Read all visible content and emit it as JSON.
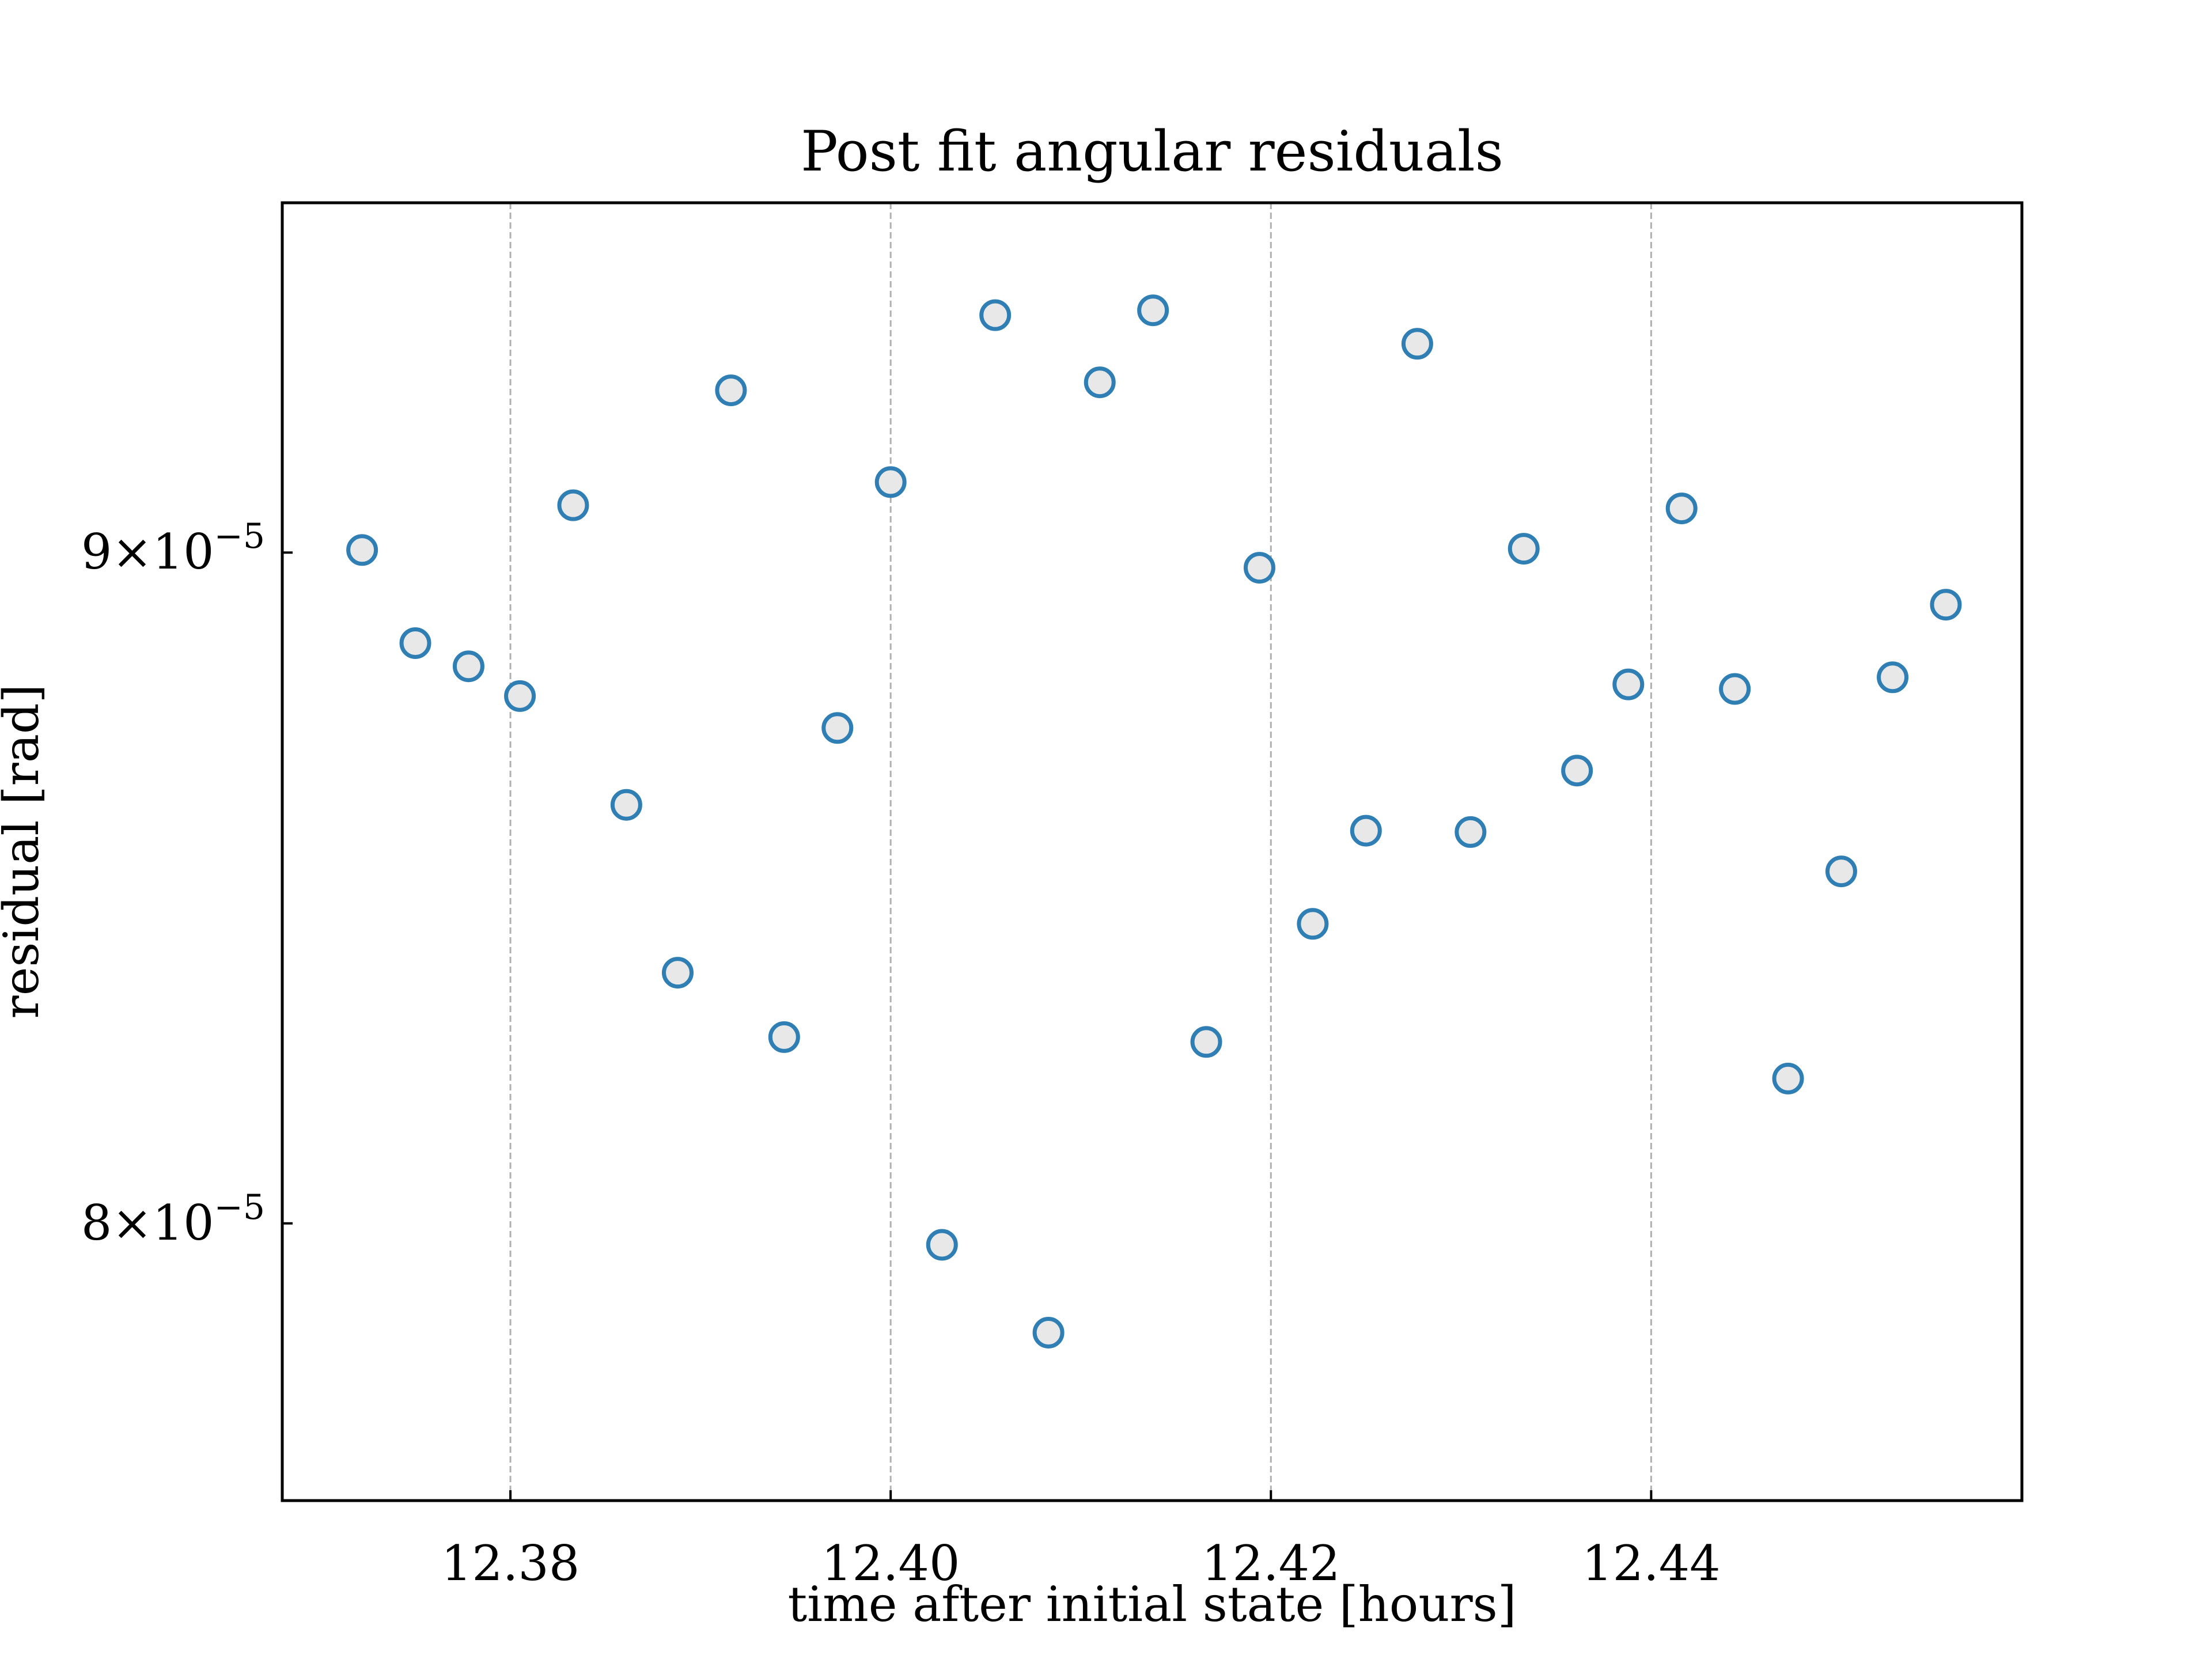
{
  "chart_data": {
    "type": "scatter",
    "title": "Post fit angular residuals",
    "xlabel": "time after initial state [hours]",
    "ylabel": "residual [rad]",
    "xlim": [
      12.368,
      12.4595
    ],
    "ylim": [
      7.62e-05,
      9.57e-05
    ],
    "y_scale": "log",
    "grid": "x-only, dashed",
    "x_ticks": [
      {
        "value": 12.38,
        "label": "12.38"
      },
      {
        "value": 12.4,
        "label": "12.40"
      },
      {
        "value": 12.42,
        "label": "12.42"
      },
      {
        "value": 12.44,
        "label": "12.44"
      }
    ],
    "y_ticks": [
      {
        "value": 9e-05,
        "mantissa": "9",
        "times": "×10",
        "exponent": "−5"
      },
      {
        "value": 8e-05,
        "mantissa": "8",
        "times": "×10",
        "exponent": "−5"
      }
    ],
    "marker": {
      "shape": "open circle",
      "edge_color": "#2f7fb5",
      "face_color": "#e8e8e8"
    },
    "x": [
      12.3722,
      12.375,
      12.3778,
      12.3805,
      12.3833,
      12.3861,
      12.3888,
      12.3916,
      12.3944,
      12.3972,
      12.4,
      12.4027,
      12.4055,
      12.4083,
      12.411,
      12.4138,
      12.4166,
      12.4194,
      12.4222,
      12.425,
      12.4277,
      12.4305,
      12.4333,
      12.4361,
      12.4388,
      12.4416,
      12.4444,
      12.4472,
      12.45,
      12.4527,
      12.4555
    ],
    "y": [
      9.004e-05,
      8.858e-05,
      8.822e-05,
      8.776e-05,
      9.075e-05,
      8.61e-05,
      8.36e-05,
      9.26e-05,
      8.266e-05,
      8.727e-05,
      9.112e-05,
      7.97e-05,
      9.383e-05,
      7.848e-05,
      9.273e-05,
      9.391e-05,
      8.259e-05,
      8.976e-05,
      8.432e-05,
      8.571e-05,
      9.336e-05,
      8.569e-05,
      9.006e-05,
      8.662e-05,
      8.794e-05,
      9.07e-05,
      8.787e-05,
      8.206e-05,
      8.51e-05,
      8.805e-05,
      8.918e-05
    ]
  }
}
